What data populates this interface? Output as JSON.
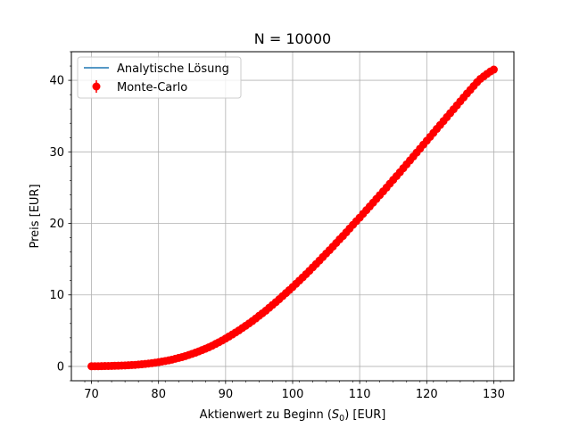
{
  "chart_data": {
    "type": "scatter",
    "title": "N = 10000",
    "xlabel": "Aktienwert zu Beginn (S0) [EUR]",
    "xlabel_parts": {
      "before": "Aktienwert zu Beginn (",
      "var": "S",
      "sub": "0",
      "after": ") [EUR]"
    },
    "ylabel": "Preis [EUR]",
    "xlim": [
      67,
      133
    ],
    "ylim": [
      -2,
      44
    ],
    "xticks": [
      70,
      80,
      90,
      100,
      110,
      120,
      130
    ],
    "yticks": [
      0,
      10,
      20,
      30,
      40
    ],
    "grid": true,
    "legend_position": "upper-left",
    "series": [
      {
        "name": "Analytische Lösung",
        "kind": "line",
        "color": "#1f77b4",
        "x": [
          70,
          72,
          74,
          76,
          78,
          80,
          82,
          84,
          86,
          88,
          90,
          92,
          94,
          96,
          98,
          100,
          102,
          104,
          106,
          108,
          110,
          112,
          114,
          116,
          118,
          120,
          122,
          124,
          126,
          128,
          130
        ],
        "y": [
          0.02,
          0.05,
          0.1,
          0.19,
          0.35,
          0.6,
          0.95,
          1.45,
          2.1,
          2.9,
          3.9,
          5.05,
          6.35,
          7.8,
          9.4,
          11.1,
          12.9,
          14.8,
          16.75,
          18.75,
          20.8,
          22.9,
          25.0,
          27.15,
          29.35,
          31.55,
          33.75,
          35.95,
          38.15,
          40.2,
          41.5
        ]
      },
      {
        "name": "Monte-Carlo",
        "kind": "errorbar",
        "color": "#ff0000",
        "x": [
          70,
          70.5,
          71,
          71.5,
          72,
          72.5,
          73,
          73.5,
          74,
          74.5,
          75,
          75.5,
          76,
          76.5,
          77,
          77.5,
          78,
          78.5,
          79,
          79.5,
          80,
          80.5,
          81,
          81.5,
          82,
          82.5,
          83,
          83.5,
          84,
          84.5,
          85,
          85.5,
          86,
          86.5,
          87,
          87.5,
          88,
          88.5,
          89,
          89.5,
          90,
          90.5,
          91,
          91.5,
          92,
          92.5,
          93,
          93.5,
          94,
          94.5,
          95,
          95.5,
          96,
          96.5,
          97,
          97.5,
          98,
          98.5,
          99,
          99.5,
          100,
          100.5,
          101,
          101.5,
          102,
          102.5,
          103,
          103.5,
          104,
          104.5,
          105,
          105.5,
          106,
          106.5,
          107,
          107.5,
          108,
          108.5,
          109,
          109.5,
          110,
          110.5,
          111,
          111.5,
          112,
          112.5,
          113,
          113.5,
          114,
          114.5,
          115,
          115.5,
          116,
          116.5,
          117,
          117.5,
          118,
          118.5,
          119,
          119.5,
          120,
          120.5,
          121,
          121.5,
          122,
          122.5,
          123,
          123.5,
          124,
          124.5,
          125,
          125.5,
          126,
          126.5,
          127,
          127.5,
          128,
          128.5,
          129,
          129.5,
          130
        ],
        "y": [
          0.02,
          0.03,
          0.03,
          0.04,
          0.05,
          0.06,
          0.07,
          0.09,
          0.1,
          0.12,
          0.14,
          0.16,
          0.19,
          0.22,
          0.26,
          0.3,
          0.35,
          0.4,
          0.46,
          0.53,
          0.6,
          0.68,
          0.76,
          0.85,
          0.95,
          1.07,
          1.19,
          1.31,
          1.45,
          1.6,
          1.76,
          1.92,
          2.1,
          2.29,
          2.48,
          2.68,
          2.9,
          3.14,
          3.38,
          3.63,
          3.9,
          4.18,
          4.46,
          4.75,
          5.05,
          5.37,
          5.69,
          6.01,
          6.35,
          6.71,
          7.08,
          7.43,
          7.8,
          8.2,
          8.6,
          8.99,
          9.4,
          9.83,
          10.26,
          10.67,
          11.1,
          11.55,
          12.0,
          12.45,
          12.9,
          13.37,
          13.85,
          14.32,
          14.8,
          15.29,
          15.78,
          16.25,
          16.75,
          17.26,
          17.77,
          18.24,
          18.75,
          19.28,
          19.8,
          20.3,
          20.8,
          21.33,
          21.85,
          22.37,
          22.9,
          23.43,
          23.95,
          24.47,
          25.0,
          25.55,
          26.09,
          26.61,
          27.15,
          27.71,
          28.26,
          28.8,
          29.35,
          29.9,
          30.45,
          31.01,
          31.55,
          32.1,
          32.65,
          33.21,
          33.75,
          34.3,
          34.85,
          35.41,
          35.95,
          36.5,
          37.05,
          37.61,
          38.15,
          38.67,
          39.2,
          39.74,
          40.2,
          40.55,
          40.9,
          41.24,
          41.5
        ],
        "yerr": 0.15
      }
    ]
  }
}
